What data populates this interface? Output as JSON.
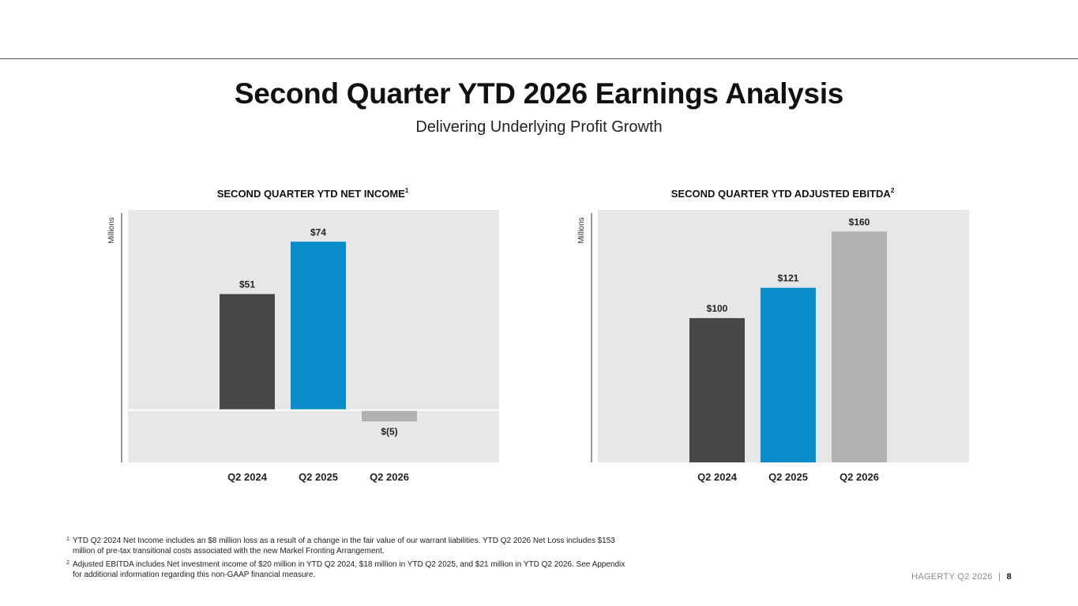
{
  "header": {
    "title": "Second Quarter YTD 2026 Earnings Analysis",
    "subtitle": "Delivering Underlying Profit Growth"
  },
  "colors": {
    "panel_bg": "#e6e7e8",
    "dark_gray": "#474747",
    "blue": "#088ccc",
    "light_gray": "#b1b1b1"
  },
  "chart_data": [
    {
      "type": "bar",
      "title": "SECOND QUARTER YTD NET INCOME",
      "title_footnote": "1",
      "ylabel": "Millions",
      "categories": [
        "Q2 2024",
        "Q2 2025",
        "Q2 2026"
      ],
      "values": [
        51,
        74,
        -5
      ],
      "value_labels": [
        "$51",
        "$74",
        "$(5)"
      ],
      "bar_colors": [
        "#474747",
        "#088ccc",
        "#b1b1b1"
      ],
      "ylim": [
        -23,
        88
      ],
      "zero_line": true,
      "grid": false
    },
    {
      "type": "bar",
      "title": "SECOND QUARTER YTD ADJUSTED EBITDA",
      "title_footnote": "2",
      "ylabel": "Millions",
      "categories": [
        "Q2 2024",
        "Q2 2025",
        "Q2 2026"
      ],
      "values": [
        100,
        121,
        160
      ],
      "value_labels": [
        "$100",
        "$121",
        "$160"
      ],
      "bar_colors": [
        "#474747",
        "#088ccc",
        "#b1b1b1"
      ],
      "ylim": [
        0,
        175
      ],
      "zero_line": false,
      "grid": false
    }
  ],
  "footnotes": [
    {
      "marker": "1",
      "text": "YTD Q2 2024 Net Income includes an $8 million loss as a result of a change in the fair value of our warrant liabilities. YTD Q2 2026 Net Loss includes $153 million of pre-tax transitional costs associated with the new Markel Fronting Arrangement."
    },
    {
      "marker": "2",
      "text": "Adjusted EBITDA includes Net investment income of $20 million in YTD Q2 2024, $18 million in YTD Q2 2025, and $21 million in YTD Q2 2026. See Appendix for additional information regarding this non-GAAP financial measure."
    }
  ],
  "footer": {
    "company": "HAGERTY",
    "period": "Q2 2026",
    "separator": "|",
    "page_number": "8"
  }
}
